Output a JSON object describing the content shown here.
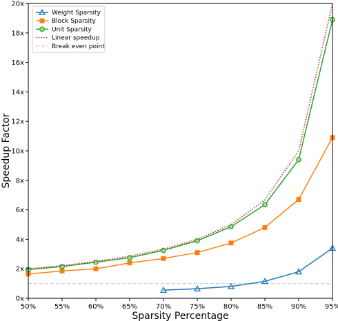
{
  "chart_data": {
    "type": "line",
    "xlabel": "Sparsity Percentage",
    "ylabel": "Speedup Factor",
    "xlim": [
      50,
      95
    ],
    "ylim": [
      0,
      20
    ],
    "x_ticks": [
      50,
      55,
      60,
      65,
      70,
      75,
      80,
      85,
      90,
      95
    ],
    "x_tick_labels": [
      "50%",
      "55%",
      "60%",
      "65%",
      "70%",
      "75%",
      "80%",
      "85%",
      "90%",
      "95%"
    ],
    "y_ticks": [
      0,
      2,
      4,
      6,
      8,
      10,
      12,
      14,
      16,
      18,
      20
    ],
    "y_tick_labels": [
      "0x",
      "2x",
      "4x",
      "6x",
      "8x",
      "10x",
      "12x",
      "14x",
      "16x",
      "18x",
      "20x"
    ],
    "grid": false,
    "legend_position": "top-left",
    "series": [
      {
        "name": "Weight Sparsity",
        "color": "#1f77b4",
        "marker": "triangle",
        "line_style": "solid",
        "x": [
          70,
          75,
          80,
          85,
          90,
          95
        ],
        "y": [
          0.55,
          0.65,
          0.8,
          1.15,
          1.8,
          3.4
        ]
      },
      {
        "name": "Block Sparsity",
        "color": "#ff7f0e",
        "marker": "square",
        "line_style": "solid",
        "x": [
          50,
          55,
          60,
          65,
          70,
          75,
          80,
          85,
          90,
          95
        ],
        "y": [
          1.65,
          1.85,
          2.0,
          2.4,
          2.7,
          3.1,
          3.75,
          4.8,
          6.7,
          10.9
        ]
      },
      {
        "name": "Unit Sparsity",
        "color": "#2ca02c",
        "marker": "circle",
        "line_style": "solid",
        "x": [
          50,
          55,
          60,
          65,
          70,
          75,
          80,
          85,
          90,
          95
        ],
        "y": [
          1.95,
          2.15,
          2.45,
          2.75,
          3.25,
          3.9,
          4.85,
          6.35,
          9.4,
          18.9
        ]
      },
      {
        "name": "Linear speedup",
        "color": "#d62728",
        "marker": "none",
        "line_style": "dotted",
        "x": [
          50,
          55,
          60,
          65,
          70,
          75,
          80,
          85,
          90,
          95
        ],
        "y": [
          2.0,
          2.22,
          2.5,
          2.86,
          3.33,
          4.0,
          5.0,
          6.67,
          10.0,
          20.0
        ]
      },
      {
        "name": "Break even point",
        "color": "#c7cfe6",
        "marker": "none",
        "line_style": "dashed",
        "x": [
          50,
          95
        ],
        "y": [
          1,
          1
        ]
      }
    ]
  }
}
